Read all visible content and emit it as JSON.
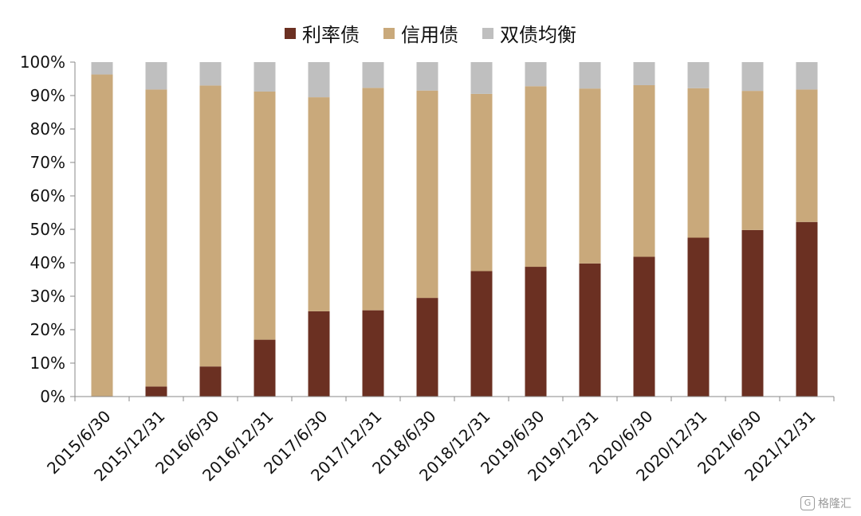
{
  "chart_data": {
    "type": "bar",
    "stacked": true,
    "title": "",
    "xlabel": "",
    "ylabel": "",
    "ylim": [
      0,
      100
    ],
    "yticks": [
      "0%",
      "10%",
      "20%",
      "30%",
      "40%",
      "50%",
      "60%",
      "70%",
      "80%",
      "90%",
      "100%"
    ],
    "categories": [
      "2015/6/30",
      "2015/12/31",
      "2016/6/30",
      "2016/12/31",
      "2017/6/30",
      "2017/12/31",
      "2018/6/30",
      "2018/12/31",
      "2019/6/30",
      "2019/12/31",
      "2020/6/30",
      "2020/12/31",
      "2021/6/30",
      "2021/12/31"
    ],
    "series": [
      {
        "name": "利率债",
        "color": "#6b3022",
        "values": [
          0,
          3,
          9,
          17,
          25.5,
          25.8,
          29.5,
          37.5,
          38.8,
          39.8,
          41.8,
          47.5,
          49.8,
          52.2
        ]
      },
      {
        "name": "信用债",
        "color": "#c9a97b",
        "values": [
          96.3,
          88.8,
          84,
          74.2,
          64,
          66.5,
          62,
          53,
          54,
          52.3,
          51.3,
          44.7,
          41.6,
          39.6
        ]
      },
      {
        "name": "双债均衡",
        "color": "#bfbfbf",
        "values": [
          3.7,
          8.2,
          7,
          8.8,
          10.5,
          7.7,
          8.5,
          9.5,
          7.2,
          7.9,
          6.9,
          7.8,
          8.6,
          8.2
        ]
      }
    ],
    "legend_position": "top-center",
    "grid": false
  },
  "watermark": {
    "text": "格隆汇",
    "icon": "G"
  }
}
